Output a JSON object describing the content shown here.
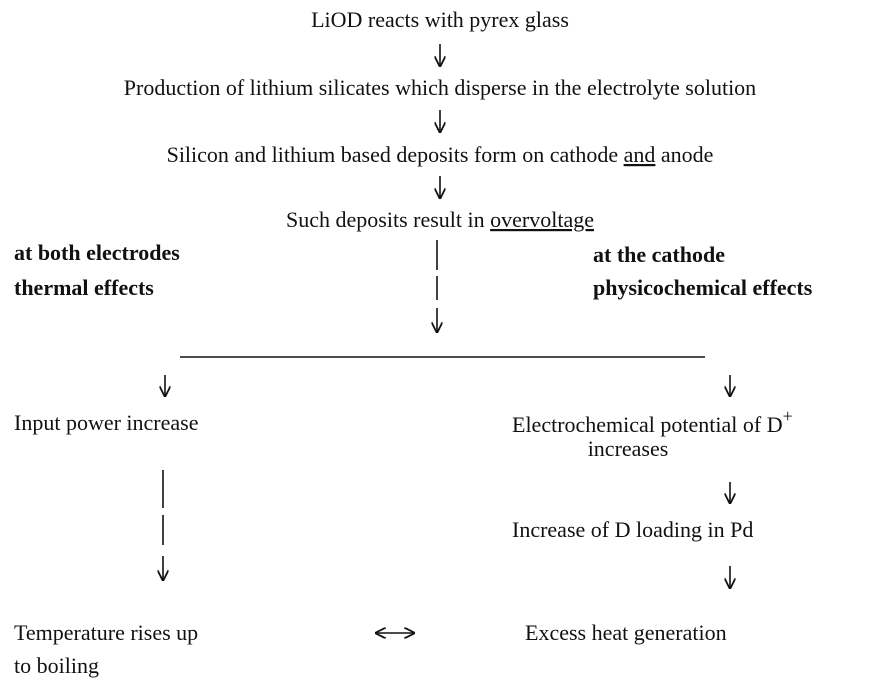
{
  "steps": [
    {
      "text": "LiOD reacts with pyrex glass"
    },
    {
      "text": "Production of lithium silicates which disperse in the electrolyte solution"
    },
    {
      "parts": [
        "Silicon and lithium based deposits form on cathode ",
        "and",
        " anode"
      ]
    },
    {
      "parts": [
        "Such deposits result in ",
        "overvoltage"
      ]
    }
  ],
  "left": {
    "heading": [
      "at both electrodes",
      "thermal effects"
    ],
    "steps": [
      {
        "lines": [
          "Input power increase"
        ]
      },
      {
        "lines": [
          "Temperature rises up",
          "to boiling"
        ]
      }
    ]
  },
  "right": {
    "heading": [
      "at the cathode",
      "physicochemical effects"
    ],
    "steps": [
      {
        "lines": [
          "Electrochemical potential of D",
          "+",
          "increases"
        ]
      },
      {
        "lines": [
          "Increase of D loading in Pd"
        ]
      },
      {
        "lines": [
          "Excess heat generation"
        ]
      }
    ]
  }
}
